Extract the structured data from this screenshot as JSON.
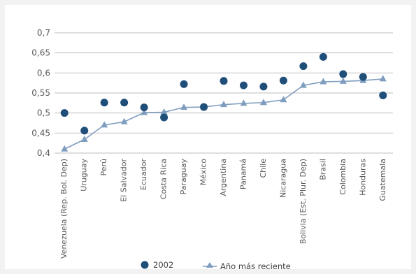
{
  "chart_data": {
    "type": "scatter",
    "categories": [
      "Venezuela (Rep. Bol. Dep)",
      "Uruguay",
      "Perú",
      "El Salvador",
      "Ecuador",
      "Costa Rica",
      "Paraguay",
      "México",
      "Argentina",
      "Panamá",
      "Chile",
      "Nicaragua",
      "Bolivia (Est. Plur. Dep)",
      "Brasil",
      "Colombia",
      "Honduras",
      "Guatemala"
    ],
    "series": [
      {
        "name": "2002",
        "kind": "markers",
        "marker": "circle",
        "color": "#1f4e79",
        "values": [
          0.5,
          0.456,
          0.526,
          0.526,
          0.514,
          0.489,
          0.572,
          0.515,
          0.58,
          0.569,
          0.566,
          0.581,
          0.617,
          0.64,
          0.597,
          0.59,
          0.544
        ]
      },
      {
        "name": "Año más reciente",
        "kind": "line",
        "marker": "triangle",
        "color": "#7f9dbf",
        "values": [
          0.41,
          0.434,
          0.47,
          0.478,
          0.501,
          0.502,
          0.514,
          0.515,
          0.521,
          0.524,
          0.526,
          0.533,
          0.569,
          0.578,
          0.579,
          0.581,
          0.585
        ]
      }
    ],
    "ylim": [
      0.4,
      0.7
    ],
    "yticks": [
      "0,4",
      "0,45",
      "0,5",
      "0,55",
      "0,6",
      "0,65",
      "0,7"
    ],
    "grid": true,
    "legend_position": "bottom"
  }
}
